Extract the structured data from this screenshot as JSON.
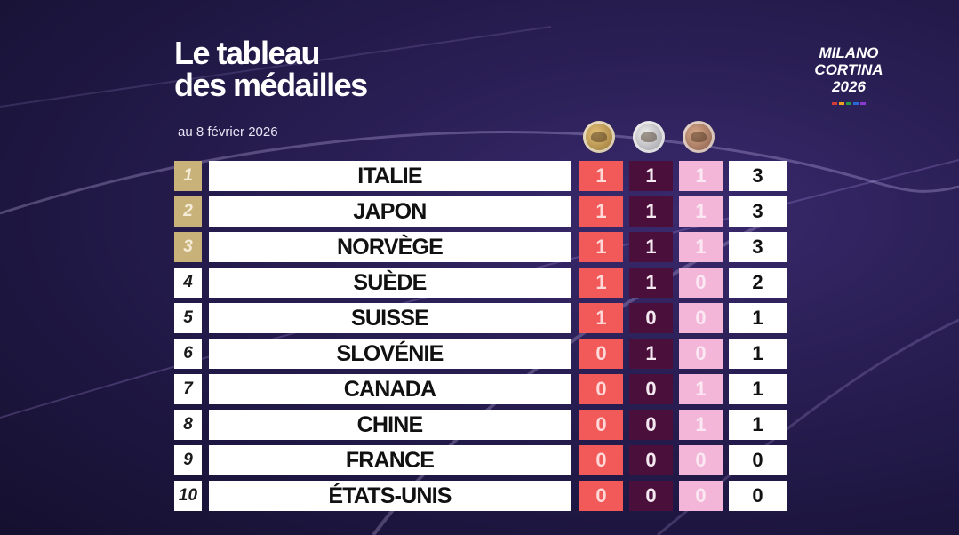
{
  "header": {
    "title_line1": "Le tableau",
    "title_line2": "des médailles",
    "date": "au 8 février 2026"
  },
  "logo": {
    "line1": "MILANO",
    "line2": "CORTINA",
    "line3": "2026"
  },
  "colors": {
    "gold_cell": "#f25a5a",
    "silver_cell": "#4a0f3a",
    "bronze_cell": "#f3b6d8",
    "podium_rank": "#c9b27a",
    "background": "#2a1f55"
  },
  "medal_icons": [
    "gold-medal-icon",
    "silver-medal-icon",
    "bronze-medal-icon"
  ],
  "standings": [
    {
      "rank": "1",
      "country": "ITALIE",
      "gold": "1",
      "silver": "1",
      "bronze": "1",
      "total": "3"
    },
    {
      "rank": "2",
      "country": "JAPON",
      "gold": "1",
      "silver": "1",
      "bronze": "1",
      "total": "3"
    },
    {
      "rank": "3",
      "country": "NORVÈGE",
      "gold": "1",
      "silver": "1",
      "bronze": "1",
      "total": "3"
    },
    {
      "rank": "4",
      "country": "SUÈDE",
      "gold": "1",
      "silver": "1",
      "bronze": "0",
      "total": "2"
    },
    {
      "rank": "5",
      "country": "SUISSE",
      "gold": "1",
      "silver": "0",
      "bronze": "0",
      "total": "1"
    },
    {
      "rank": "6",
      "country": "SLOVÉNIE",
      "gold": "0",
      "silver": "1",
      "bronze": "0",
      "total": "1"
    },
    {
      "rank": "7",
      "country": "CANADA",
      "gold": "0",
      "silver": "0",
      "bronze": "1",
      "total": "1"
    },
    {
      "rank": "8",
      "country": "CHINE",
      "gold": "0",
      "silver": "0",
      "bronze": "1",
      "total": "1"
    },
    {
      "rank": "9",
      "country": "FRANCE",
      "gold": "0",
      "silver": "0",
      "bronze": "0",
      "total": "0"
    },
    {
      "rank": "10",
      "country": "ÉTATS-UNIS",
      "gold": "0",
      "silver": "0",
      "bronze": "0",
      "total": "0"
    }
  ]
}
